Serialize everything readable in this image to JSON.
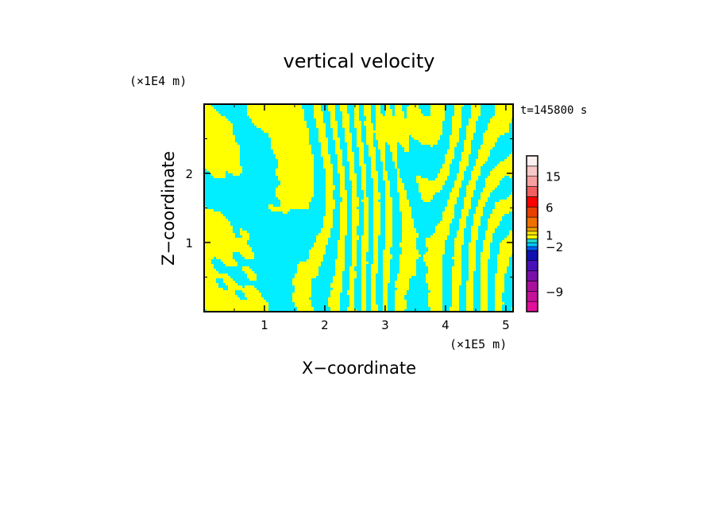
{
  "chart_data": {
    "type": "heatmap",
    "title": "vertical velocity",
    "time_label": "t=145800 s",
    "xlabel": "X−coordinate",
    "ylabel": "Z−coordinate",
    "x_unit": "(×1E5 m)",
    "y_unit": "(×1E4 m)",
    "xlim": [
      0,
      5.12
    ],
    "ylim": [
      0,
      3.0
    ],
    "x_ticks": [
      "1",
      "2",
      "3",
      "4",
      "5"
    ],
    "y_ticks": [
      "1",
      "2"
    ],
    "colors": {
      "positive": "#ffff00",
      "negative": "#00eeff",
      "axis": "#000000"
    },
    "colorbar": {
      "levels": [
        -12,
        -10.5,
        -9,
        -7.5,
        -6,
        -4.5,
        -3,
        -2,
        -1,
        0,
        1,
        2,
        3,
        4.5,
        6,
        9,
        12,
        15,
        18,
        24
      ],
      "colors": [
        "#e0109a",
        "#c4129a",
        "#aa109e",
        "#7a10a8",
        "#4a10b8",
        "#1010b0",
        "#0060ff",
        "#00c8ff",
        "#20d8c8",
        "#ffff00",
        "#f4e000",
        "#f0a000",
        "#f07000",
        "#e84000",
        "#ff0000",
        "#f06060",
        "#f8a0a0",
        "#f8c8c8",
        "#fff0f0"
      ],
      "labels": [
        "15",
        "6",
        "1",
        "−2",
        "−9"
      ],
      "label_values": [
        15,
        6,
        1,
        -2,
        -9
      ]
    }
  }
}
